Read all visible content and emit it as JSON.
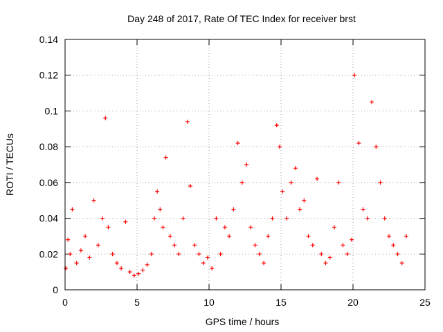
{
  "chart_data": {
    "type": "scatter",
    "title": "Day 248 of 2017, Rate Of TEC Index for receiver brst",
    "xlabel": "GPS time / hours",
    "ylabel": "ROTI / TECUs",
    "xlim": [
      0,
      25
    ],
    "ylim": [
      0,
      0.14
    ],
    "xticks": [
      0,
      5,
      10,
      15,
      20,
      25
    ],
    "xtick_labels": [
      "0",
      "5",
      "10",
      "15",
      "20",
      "25"
    ],
    "yticks": [
      0,
      0.02,
      0.04,
      0.06,
      0.08,
      0.1,
      0.12,
      0.14
    ],
    "ytick_labels": [
      "0",
      "0.02",
      "0.04",
      "0.06",
      "0.08",
      "0.1",
      "0.12",
      "0.14"
    ],
    "grid": true,
    "legend": "none",
    "marker": "plus",
    "marker_color": "#ff0000",
    "series": [
      {
        "x": [
          0.05,
          0.2,
          0.35,
          0.5,
          0.8,
          1.1,
          1.4,
          1.7,
          2.0,
          2.3,
          2.6,
          2.8,
          3.0,
          3.3,
          3.6,
          3.9,
          4.2,
          4.5,
          4.8,
          5.1,
          5.4,
          5.7,
          6.0,
          6.2,
          6.4,
          6.6,
          6.8,
          7.0,
          7.3,
          7.6,
          7.9,
          8.2,
          8.5,
          8.7,
          9.0,
          9.3,
          9.6,
          9.9,
          10.2,
          10.5,
          10.8,
          11.1,
          11.4,
          11.7,
          12.0,
          12.3,
          12.6,
          12.9,
          13.2,
          13.5,
          13.8,
          14.1,
          14.4,
          14.7,
          14.9,
          15.1,
          15.4,
          15.7,
          16.0,
          16.3,
          16.6,
          16.9,
          17.2,
          17.5,
          17.8,
          18.1,
          18.4,
          18.7,
          19.0,
          19.3,
          19.6,
          19.9,
          20.1,
          20.4,
          20.7,
          21.0,
          21.3,
          21.6,
          21.9,
          22.2,
          22.5,
          22.8,
          23.1,
          23.4,
          23.7
        ],
        "y": [
          0.012,
          0.028,
          0.02,
          0.045,
          0.015,
          0.022,
          0.03,
          0.018,
          0.05,
          0.025,
          0.04,
          0.096,
          0.035,
          0.02,
          0.015,
          0.012,
          0.038,
          0.01,
          0.008,
          0.009,
          0.011,
          0.014,
          0.02,
          0.04,
          0.055,
          0.045,
          0.035,
          0.074,
          0.03,
          0.025,
          0.02,
          0.04,
          0.094,
          0.058,
          0.025,
          0.02,
          0.015,
          0.018,
          0.012,
          0.04,
          0.02,
          0.035,
          0.03,
          0.045,
          0.082,
          0.06,
          0.07,
          0.035,
          0.025,
          0.02,
          0.015,
          0.03,
          0.04,
          0.092,
          0.08,
          0.055,
          0.04,
          0.06,
          0.068,
          0.045,
          0.05,
          0.03,
          0.025,
          0.062,
          0.02,
          0.015,
          0.018,
          0.035,
          0.06,
          0.025,
          0.02,
          0.028,
          0.12,
          0.082,
          0.045,
          0.04,
          0.105,
          0.08,
          0.06,
          0.04,
          0.03,
          0.025,
          0.02,
          0.015,
          0.03
        ]
      }
    ]
  }
}
